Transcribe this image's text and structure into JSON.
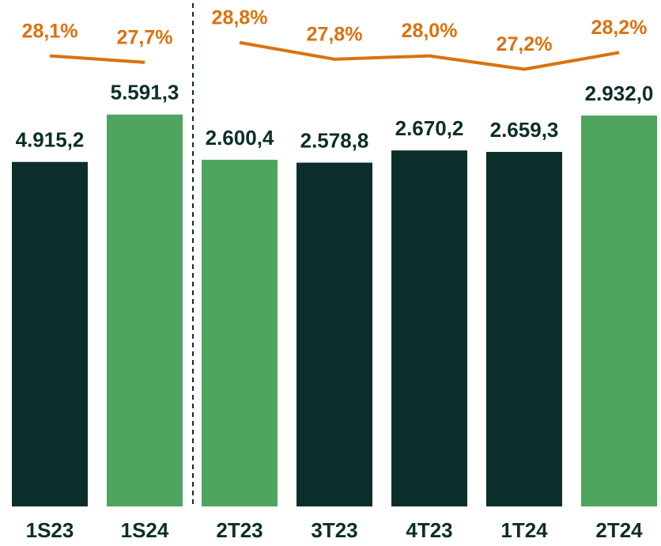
{
  "chart_data": [
    {
      "type": "bar",
      "categories": [
        "1S23",
        "1S24"
      ],
      "ylim": [
        0,
        7000
      ],
      "y2lim": [
        0,
        30.6
      ],
      "series": [
        {
          "type": "bar",
          "colors": [
            "#0b2e2a",
            "#4fa45e"
          ],
          "values": [
            4915.2,
            5591.3
          ],
          "value_labels": [
            "4.915,2",
            "5.591,3"
          ]
        },
        {
          "type": "line",
          "axis": "y2",
          "color": "#d9720f",
          "values": [
            28.1,
            27.7
          ],
          "value_labels": [
            "28,1%",
            "27,7%"
          ]
        }
      ]
    },
    {
      "type": "bar",
      "categories": [
        "2T23",
        "3T23",
        "4T23",
        "1T24",
        "2T24"
      ],
      "ylim": [
        0,
        3680
      ],
      "y2lim": [
        1,
        30.4
      ],
      "series": [
        {
          "type": "bar",
          "colors": [
            "#4fa45e",
            "#0b2e2a",
            "#0b2e2a",
            "#0b2e2a",
            "#4fa45e"
          ],
          "values": [
            2600.4,
            2578.8,
            2670.2,
            2659.3,
            2932.0
          ],
          "value_labels": [
            "2.600,4",
            "2.578,8",
            "2.670,2",
            "2.659,3",
            "2.932,0"
          ]
        },
        {
          "type": "line",
          "axis": "y2",
          "color": "#d9720f",
          "values": [
            28.8,
            27.8,
            28.0,
            27.2,
            28.2
          ],
          "value_labels": [
            "28,8%",
            "27,8%",
            "28,0%",
            "27,2%",
            "28,2%"
          ]
        }
      ]
    }
  ]
}
